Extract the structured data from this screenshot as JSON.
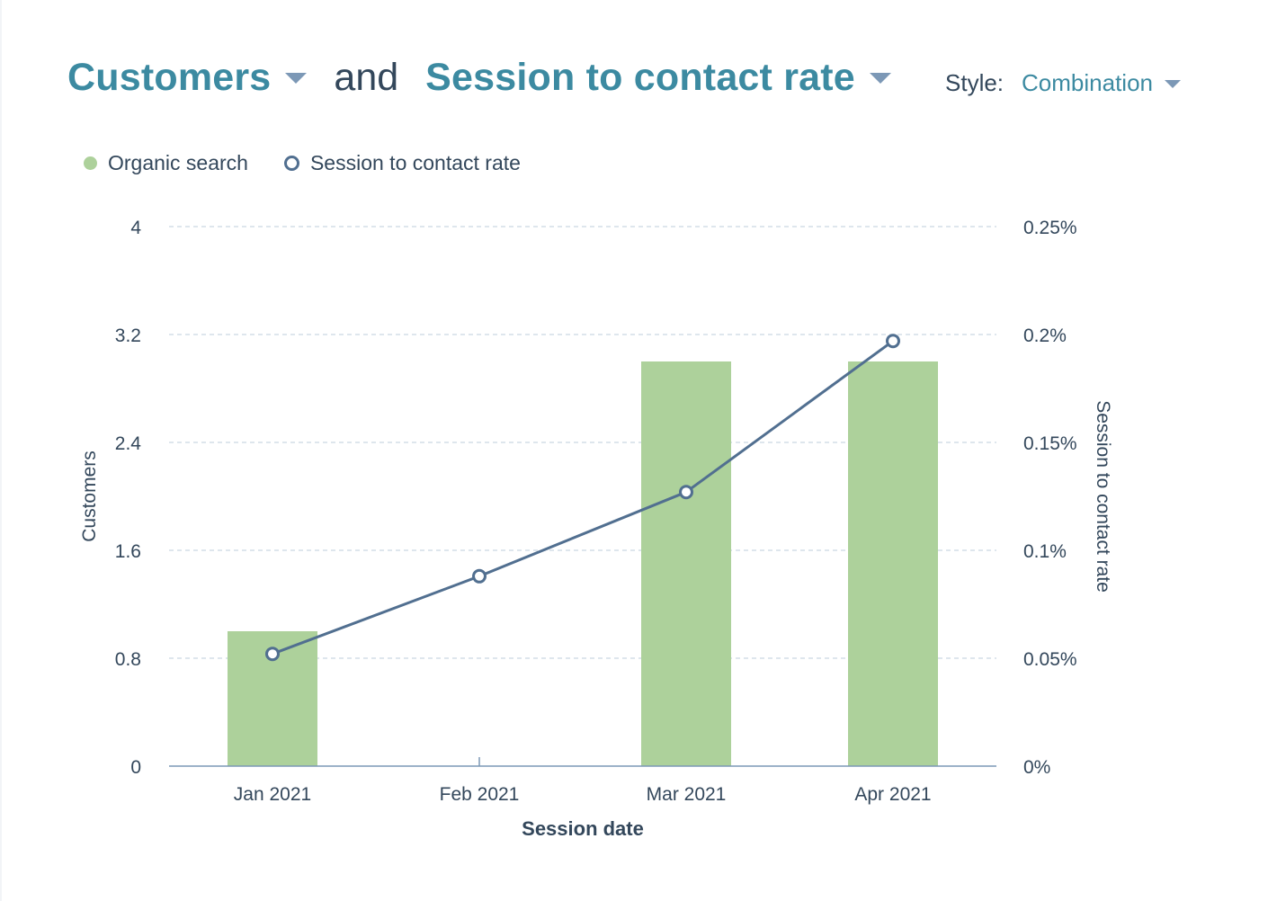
{
  "header": {
    "primary_metric": "Customers",
    "connector": "and",
    "secondary_metric": "Session to contact rate",
    "style_label": "Style:",
    "style_value": "Combination"
  },
  "legend": [
    {
      "label": "Organic search"
    },
    {
      "label": "Session to contact rate"
    }
  ],
  "colors": {
    "accent": "#3c8aa1",
    "bar": "#add19b",
    "line": "#516f90",
    "text": "#33475b",
    "grid": "#cbd6e2"
  },
  "chart_data": {
    "type": "bar",
    "combination": true,
    "categories": [
      "Jan 2021",
      "Feb 2021",
      "Mar 2021",
      "Apr 2021"
    ],
    "series": [
      {
        "name": "Organic search",
        "type": "bar",
        "axis": "left",
        "values": [
          1,
          0,
          3,
          3
        ]
      },
      {
        "name": "Session to contact rate",
        "type": "line",
        "axis": "right",
        "values": [
          0.052,
          0.088,
          0.127,
          0.197
        ]
      }
    ],
    "xlabel": "Session date",
    "ylabel": "Customers",
    "y2label": "Session to contact rate",
    "ylim": [
      0,
      4
    ],
    "y2lim": [
      0,
      0.25
    ],
    "yticks": [
      "0",
      "0.8",
      "1.6",
      "2.4",
      "3.2",
      "4"
    ],
    "y2ticks": [
      "0%",
      "0.05%",
      "0.1%",
      "0.15%",
      "0.2%",
      "0.25%"
    ],
    "grid": true,
    "legend_position": "top-left"
  }
}
